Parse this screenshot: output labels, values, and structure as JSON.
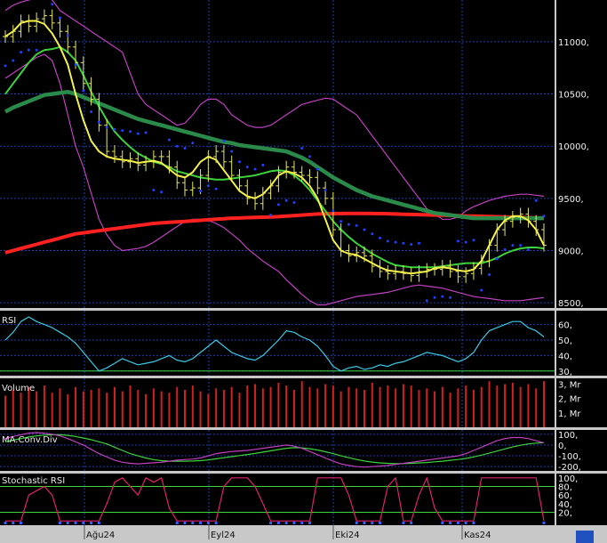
{
  "colors": {
    "background": "#000000",
    "grid": "#1d3fb0",
    "price_bar": "#e8e85a",
    "sma_fast": "#f4f24a",
    "sma_mid": "#3cd33c",
    "sma_slow": "#2a8a4a",
    "sma_long": "#ff2020",
    "bollinger": "#c040c0",
    "sar": "#2040ff",
    "rsi": "#3cc8e6",
    "volume": "#d02020",
    "macd": "#c040c0",
    "macd_signal": "#3cd33c",
    "stoch": "#e0206a",
    "stoch_level": "#3cd33c",
    "axis_bg": "#000000",
    "xaxis_bg": "#c8c8c8"
  },
  "panels": {
    "rsi_label": "RSI",
    "volume_label": "Volume",
    "macd_label": "MA.Conv.Div",
    "stoch_label": "Stochastic RSI"
  },
  "x_labels": [
    "Ağu24",
    "Eyl24",
    "Eki24",
    "Kas24"
  ],
  "chart_data": [
    {
      "type": "line",
      "panel": "price",
      "y_ticks": [
        "11000,",
        "10500,",
        "10000,",
        "9500,",
        "9000,",
        "8500,"
      ],
      "ylim": [
        8450,
        11400
      ],
      "series": [
        {
          "key": "close",
          "values": [
            11050,
            11100,
            11200,
            11150,
            11220,
            11250,
            11180,
            11100,
            10950,
            10800,
            10600,
            10450,
            10200,
            9950,
            9900,
            9850,
            9880,
            9820,
            9850,
            9900,
            9900,
            9800,
            9650,
            9580,
            9600,
            9720,
            9900,
            9950,
            9850,
            9720,
            9620,
            9500,
            9450,
            9550,
            9620,
            9750,
            9800,
            9750,
            9720,
            9700,
            9600,
            9500,
            9200,
            9000,
            8950,
            8980,
            8950,
            8850,
            8800,
            8780,
            8800,
            8780,
            8760,
            8800,
            8820,
            8820,
            8850,
            8800,
            8750,
            8780,
            8830,
            8900,
            9050,
            9200,
            9280,
            9320,
            9350,
            9280,
            9200,
            9050
          ]
        },
        {
          "key": "sma_fast",
          "values": [
            11050,
            11100,
            11180,
            11200,
            11200,
            11170,
            11080,
            10950,
            10780,
            10500,
            10250,
            10050,
            9950,
            9900,
            9880,
            9870,
            9860,
            9840,
            9850,
            9860,
            9840,
            9780,
            9720,
            9700,
            9750,
            9850,
            9900,
            9870,
            9770,
            9670,
            9570,
            9520,
            9500,
            9540,
            9620,
            9720,
            9760,
            9740,
            9700,
            9620,
            9500,
            9300,
            9100,
            9000,
            8970,
            8960,
            8920,
            8880,
            8840,
            8810,
            8800,
            8790,
            8780,
            8790,
            8800,
            8830,
            8840,
            8830,
            8810,
            8800,
            8820,
            8900,
            9050,
            9200,
            9290,
            9330,
            9330,
            9290,
            9200,
            9050
          ]
        },
        {
          "key": "sma_mid",
          "values": [
            10500,
            10600,
            10700,
            10800,
            10880,
            10920,
            10930,
            10950,
            10900,
            10820,
            10680,
            10520,
            10380,
            10250,
            10140,
            10060,
            9990,
            9930,
            9890,
            9850,
            9830,
            9800,
            9760,
            9740,
            9720,
            9700,
            9690,
            9680,
            9680,
            9690,
            9700,
            9710,
            9720,
            9740,
            9760,
            9770,
            9760,
            9720,
            9660,
            9580,
            9480,
            9380,
            9280,
            9200,
            9130,
            9070,
            9020,
            8970,
            8930,
            8890,
            8860,
            8850,
            8840,
            8840,
            8840,
            8840,
            8850,
            8860,
            8870,
            8880,
            8880,
            8880,
            8900,
            8930,
            8970,
            9000,
            9020,
            9030,
            9030,
            9020
          ]
        },
        {
          "key": "sma_slow",
          "values": [
            10330,
            10370,
            10400,
            10430,
            10460,
            10490,
            10500,
            10510,
            10520,
            10500,
            10470,
            10440,
            10410,
            10380,
            10350,
            10320,
            10290,
            10260,
            10240,
            10220,
            10200,
            10180,
            10160,
            10140,
            10120,
            10100,
            10080,
            10060,
            10040,
            10030,
            10010,
            10000,
            9990,
            9980,
            9970,
            9960,
            9950,
            9920,
            9890,
            9850,
            9800,
            9750,
            9700,
            9660,
            9620,
            9580,
            9550,
            9520,
            9500,
            9480,
            9460,
            9440,
            9420,
            9400,
            9380,
            9360,
            9350,
            9340,
            9330,
            9320,
            9310,
            9310,
            9310,
            9310,
            9310,
            9310,
            9310,
            9310,
            9310,
            9310
          ]
        },
        {
          "key": "sma_long",
          "values": [
            8980,
            9000,
            9020,
            9040,
            9060,
            9080,
            9100,
            9120,
            9140,
            9160,
            9170,
            9180,
            9190,
            9200,
            9210,
            9220,
            9230,
            9240,
            9250,
            9260,
            9265,
            9270,
            9275,
            9280,
            9285,
            9290,
            9295,
            9300,
            9305,
            9310,
            9312,
            9315,
            9318,
            9320,
            9322,
            9325,
            9330,
            9335,
            9340,
            9345,
            9350,
            9352,
            9354,
            9355,
            9356,
            9356,
            9356,
            9355,
            9354,
            9353,
            9350,
            9348,
            9346,
            9344,
            9342,
            9340,
            9338,
            9336,
            9334,
            9332,
            9330,
            9328,
            9326,
            9324,
            9322,
            9320,
            9318,
            9316,
            9314,
            9312
          ]
        },
        {
          "key": "boll_upper",
          "values": [
            11300,
            11350,
            11380,
            11400,
            11420,
            11440,
            11400,
            11300,
            11250,
            11200,
            11150,
            11100,
            11050,
            11000,
            10950,
            10900,
            10700,
            10500,
            10400,
            10350,
            10300,
            10250,
            10200,
            10220,
            10300,
            10400,
            10450,
            10450,
            10400,
            10300,
            10250,
            10200,
            10180,
            10180,
            10200,
            10250,
            10300,
            10350,
            10400,
            10420,
            10440,
            10460,
            10450,
            10400,
            10350,
            10300,
            10200,
            10100,
            10000,
            9900,
            9800,
            9700,
            9600,
            9500,
            9400,
            9350,
            9300,
            9300,
            9320,
            9380,
            9420,
            9450,
            9480,
            9500,
            9520,
            9530,
            9540,
            9540,
            9530,
            9520
          ]
        },
        {
          "key": "boll_lower",
          "values": [
            10650,
            10700,
            10750,
            10800,
            10850,
            10880,
            10820,
            10600,
            10300,
            10000,
            9800,
            9550,
            9300,
            9150,
            9050,
            9000,
            9010,
            9020,
            9040,
            9080,
            9130,
            9180,
            9230,
            9280,
            9300,
            9300,
            9290,
            9260,
            9220,
            9160,
            9100,
            9020,
            8960,
            8900,
            8850,
            8800,
            8720,
            8650,
            8580,
            8520,
            8480,
            8480,
            8500,
            8520,
            8540,
            8560,
            8570,
            8580,
            8590,
            8600,
            8620,
            8640,
            8660,
            8670,
            8660,
            8650,
            8640,
            8620,
            8600,
            8580,
            8560,
            8550,
            8540,
            8530,
            8520,
            8520,
            8520,
            8530,
            8540,
            8550
          ]
        }
      ]
    },
    {
      "type": "line",
      "panel": "rsi",
      "y_ticks": [
        "60,",
        "50,",
        "40,",
        "30,"
      ],
      "ylim": [
        27,
        69
      ],
      "values": [
        50,
        55,
        62,
        65,
        62,
        60,
        58,
        55,
        52,
        48,
        42,
        36,
        30,
        32,
        35,
        38,
        36,
        34,
        35,
        36,
        38,
        40,
        37,
        36,
        38,
        42,
        46,
        50,
        46,
        42,
        40,
        38,
        37,
        40,
        45,
        50,
        56,
        55,
        52,
        50,
        46,
        40,
        33,
        30,
        32,
        33,
        31,
        32,
        34,
        33,
        35,
        36,
        38,
        40,
        42,
        41,
        40,
        38,
        36,
        38,
        42,
        50,
        56,
        58,
        60,
        62,
        62,
        58,
        56,
        52
      ]
    },
    {
      "type": "bar",
      "panel": "volume",
      "y_ticks": [
        "3, Mr",
        "2, Mr",
        "1, Mr"
      ],
      "ylim": [
        0,
        3.4
      ],
      "values": [
        2.2,
        2.6,
        2.4,
        2.8,
        2.5,
        2.9,
        2.4,
        2.7,
        2.3,
        2.8,
        2.5,
        2.6,
        2.7,
        2.4,
        2.8,
        2.5,
        2.9,
        2.6,
        2.3,
        2.7,
        2.5,
        2.4,
        2.8,
        2.6,
        2.9,
        2.5,
        2.3,
        2.7,
        2.6,
        2.8,
        2.4,
        2.9,
        3.0,
        2.7,
        2.8,
        3.1,
        2.9,
        2.6,
        3.2,
        2.8,
        2.7,
        3.0,
        2.9,
        2.5,
        2.8,
        2.7,
        2.6,
        3.1,
        2.8,
        2.9,
        2.7,
        3.0,
        2.9,
        2.6,
        2.7,
        2.5,
        2.8,
        2.4,
        2.7,
        2.9,
        2.6,
        2.8,
        3.2,
        2.9,
        3.0,
        3.1,
        2.8,
        3.0,
        2.7,
        3.2
      ]
    },
    {
      "type": "line",
      "panel": "macd",
      "y_ticks": [
        "100,",
        "0,",
        "-100,",
        "-200,"
      ],
      "ylim": [
        -240,
        140
      ],
      "series": [
        {
          "key": "macd",
          "values": [
            60,
            80,
            95,
            110,
            115,
            110,
            100,
            85,
            60,
            30,
            0,
            -40,
            -80,
            -110,
            -140,
            -160,
            -170,
            -175,
            -170,
            -165,
            -160,
            -150,
            -140,
            -135,
            -130,
            -120,
            -100,
            -80,
            -70,
            -60,
            -55,
            -50,
            -40,
            -30,
            -20,
            -10,
            0,
            -10,
            -30,
            -60,
            -90,
            -120,
            -150,
            -175,
            -190,
            -200,
            -205,
            -200,
            -195,
            -190,
            -180,
            -170,
            -160,
            -150,
            -140,
            -130,
            -120,
            -110,
            -100,
            -80,
            -50,
            -20,
            10,
            40,
            60,
            70,
            70,
            60,
            40,
            20
          ]
        },
        {
          "key": "signal",
          "values": [
            30,
            45,
            60,
            75,
            85,
            92,
            95,
            95,
            90,
            80,
            65,
            50,
            30,
            10,
            -20,
            -50,
            -80,
            -100,
            -120,
            -135,
            -145,
            -150,
            -150,
            -150,
            -148,
            -145,
            -138,
            -128,
            -118,
            -108,
            -98,
            -88,
            -78,
            -66,
            -54,
            -42,
            -30,
            -24,
            -26,
            -34,
            -46,
            -62,
            -80,
            -100,
            -118,
            -134,
            -148,
            -158,
            -166,
            -170,
            -172,
            -172,
            -170,
            -166,
            -162,
            -156,
            -150,
            -142,
            -134,
            -124,
            -110,
            -94,
            -76,
            -56,
            -36,
            -18,
            -2,
            10,
            18,
            22
          ]
        }
      ]
    },
    {
      "type": "line",
      "panel": "stoch",
      "y_ticks": [
        "100,",
        "80,",
        "60,",
        "40,",
        "20,"
      ],
      "ylim": [
        -10,
        110
      ],
      "levels": [
        80,
        20
      ],
      "values": [
        0,
        0,
        0,
        60,
        70,
        80,
        60,
        0,
        0,
        0,
        0,
        0,
        0,
        40,
        90,
        100,
        80,
        60,
        100,
        90,
        100,
        30,
        0,
        0,
        0,
        0,
        0,
        0,
        80,
        100,
        100,
        100,
        80,
        40,
        0,
        0,
        0,
        0,
        0,
        0,
        100,
        100,
        100,
        100,
        60,
        0,
        0,
        0,
        0,
        80,
        100,
        0,
        0,
        60,
        100,
        30,
        0,
        0,
        0,
        0,
        0,
        100,
        100,
        100,
        100,
        100,
        100,
        100,
        100,
        0
      ]
    }
  ]
}
